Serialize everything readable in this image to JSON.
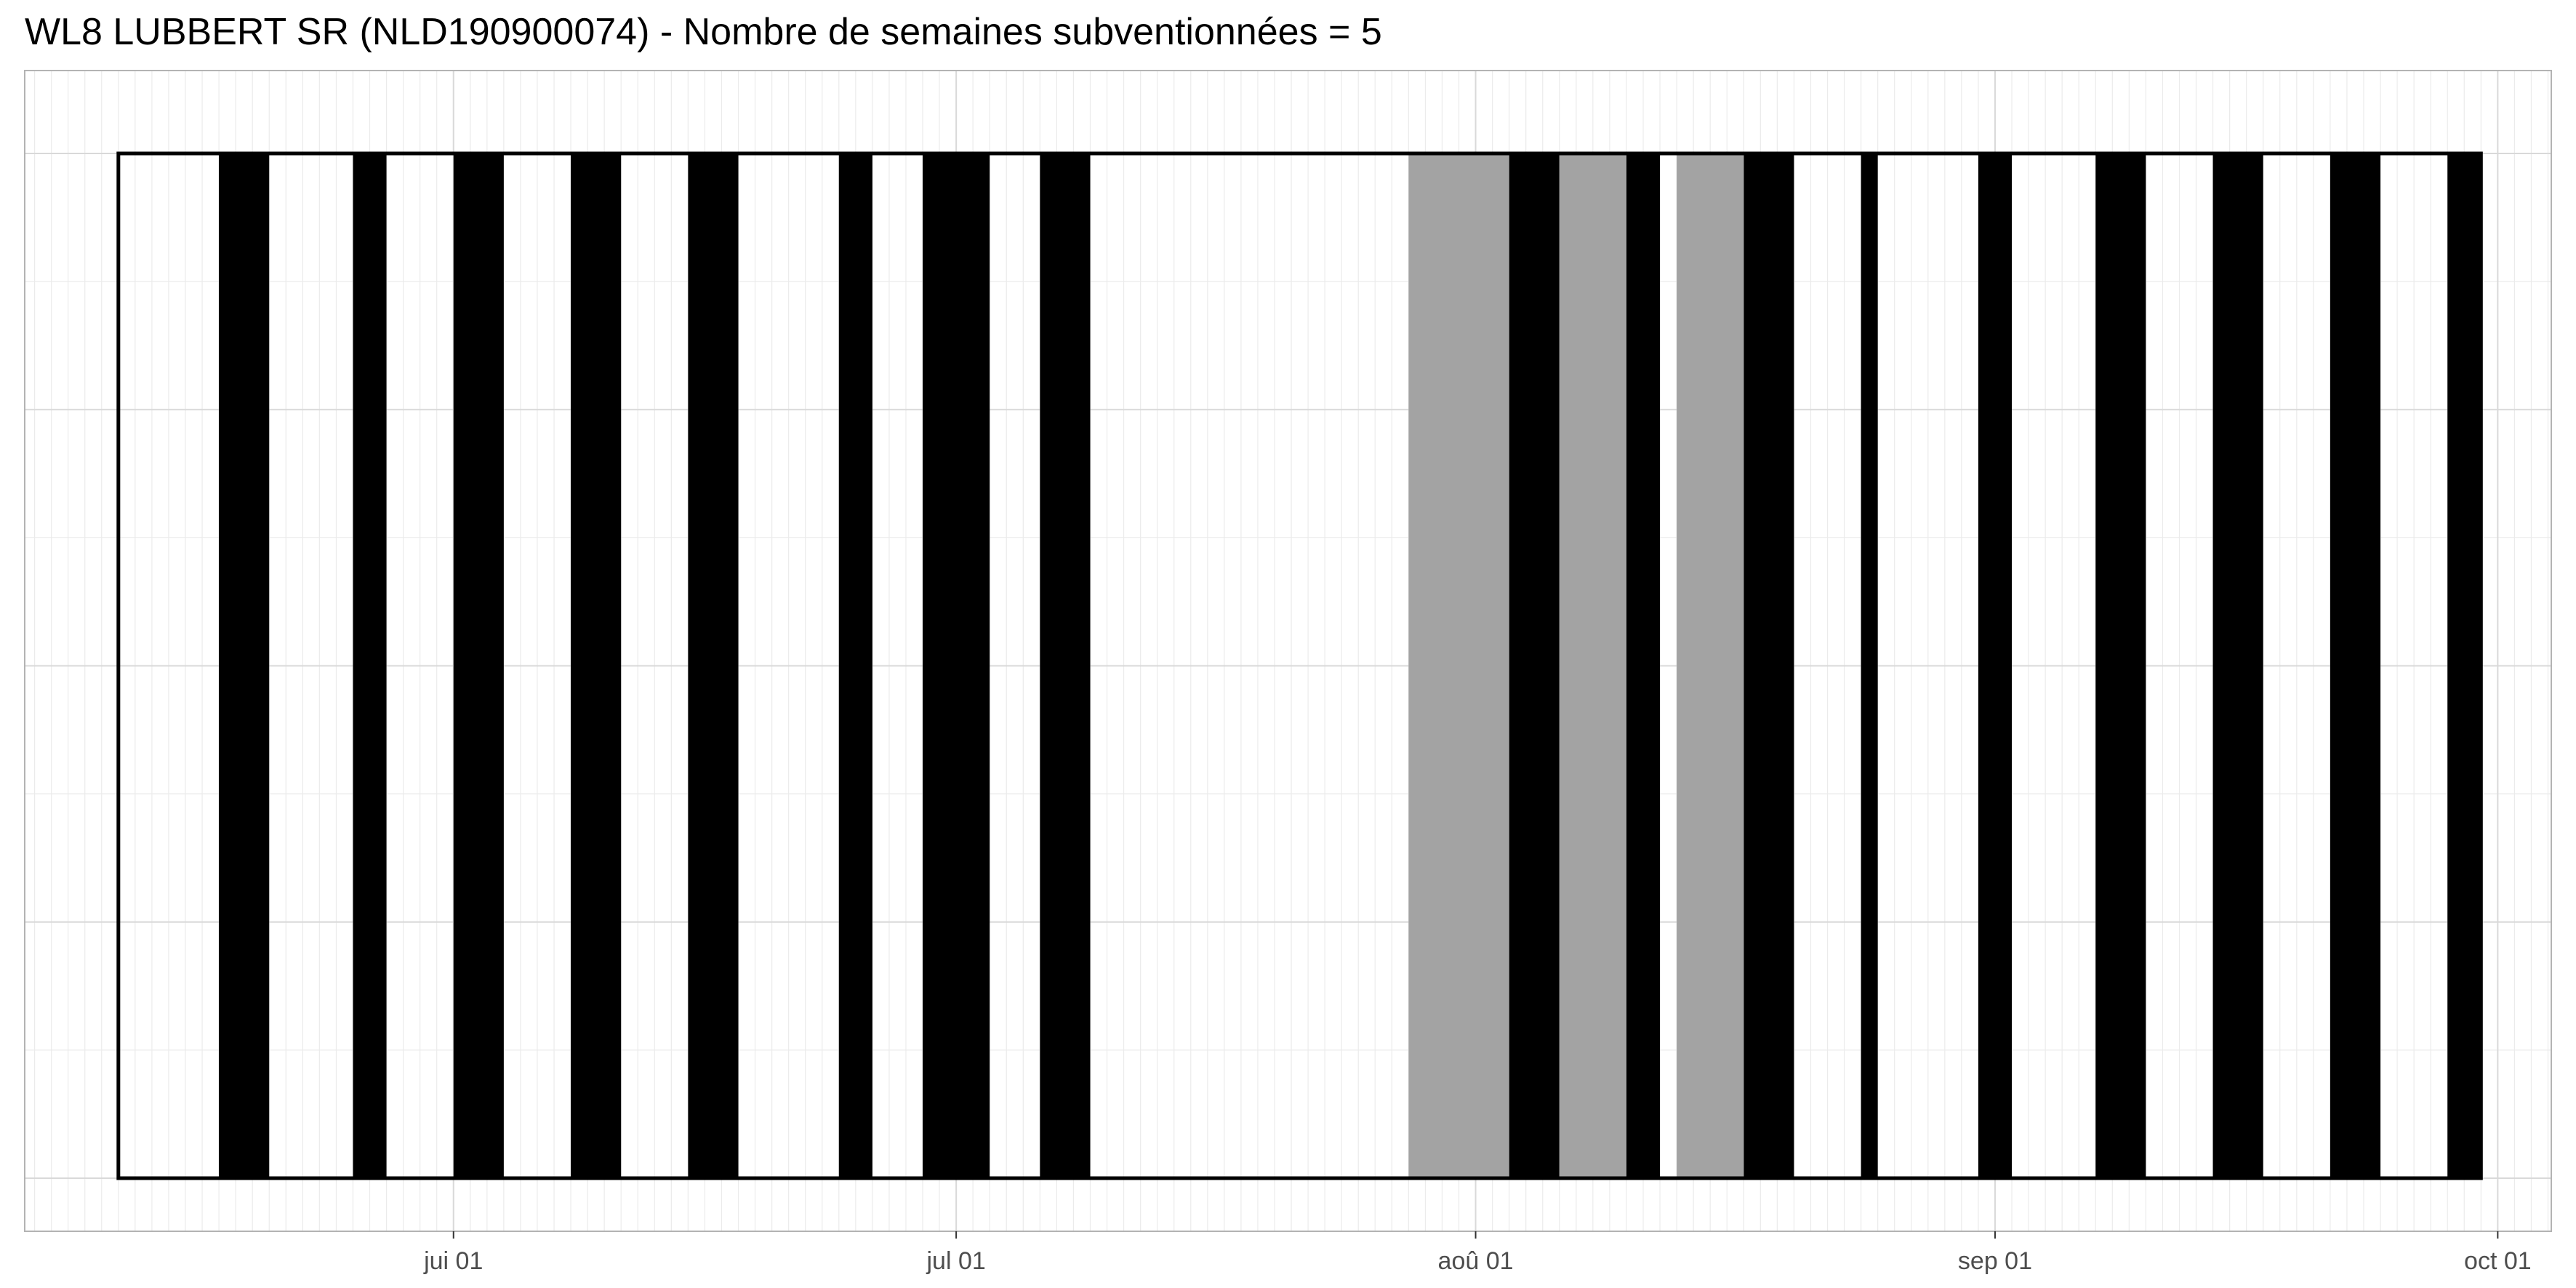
{
  "title": "WL8 LUBBERT SR (NLD190900074) - Nombre de semaines subventionnées = 5",
  "colors": {
    "background": "#ffffff",
    "grid_major": "#d9d9d9",
    "grid_minor": "#ebebeb",
    "panel_border": "#b3b3b3",
    "occupied": "#000000",
    "subsidized": "#a3a3a3",
    "frame": "#000000"
  },
  "chart_data": {
    "type": "bar",
    "x_axis": {
      "type": "date",
      "range": [
        "2024-05-05",
        "2024-10-04"
      ],
      "ticks": [
        {
          "date": "2024-06-01",
          "label": "jui 01"
        },
        {
          "date": "2024-07-01",
          "label": "jul 01"
        },
        {
          "date": "2024-08-01",
          "label": "aoû 01"
        },
        {
          "date": "2024-09-01",
          "label": "sep 01"
        },
        {
          "date": "2024-10-01",
          "label": "oct 01"
        }
      ]
    },
    "y_axis": {
      "tick_labels": "none"
    },
    "grid": true,
    "frame": {
      "start": "2024-05-12",
      "end": "2024-09-30"
    },
    "series": [
      {
        "status": "occupied",
        "color": "#000000",
        "intervals": [
          [
            "2024-05-18",
            "2024-05-21"
          ],
          [
            "2024-05-26",
            "2024-05-28"
          ],
          [
            "2024-06-01",
            "2024-06-04"
          ],
          [
            "2024-06-08",
            "2024-06-11"
          ],
          [
            "2024-06-15",
            "2024-06-18"
          ],
          [
            "2024-06-24",
            "2024-06-26"
          ],
          [
            "2024-06-29",
            "2024-07-03"
          ],
          [
            "2024-07-06",
            "2024-07-09"
          ],
          [
            "2024-08-03",
            "2024-08-06"
          ],
          [
            "2024-08-10",
            "2024-08-12"
          ],
          [
            "2024-08-17",
            "2024-08-20"
          ],
          [
            "2024-08-24",
            "2024-08-25"
          ],
          [
            "2024-08-31",
            "2024-09-02"
          ],
          [
            "2024-09-07",
            "2024-09-10"
          ],
          [
            "2024-09-14",
            "2024-09-17"
          ],
          [
            "2024-09-21",
            "2024-09-24"
          ],
          [
            "2024-09-28",
            "2024-09-30"
          ]
        ]
      },
      {
        "status": "subsidized",
        "color": "#a3a3a3",
        "intervals": [
          [
            "2024-07-28",
            "2024-08-03"
          ],
          [
            "2024-08-06",
            "2024-08-10"
          ],
          [
            "2024-08-13",
            "2024-08-17"
          ]
        ]
      }
    ]
  }
}
